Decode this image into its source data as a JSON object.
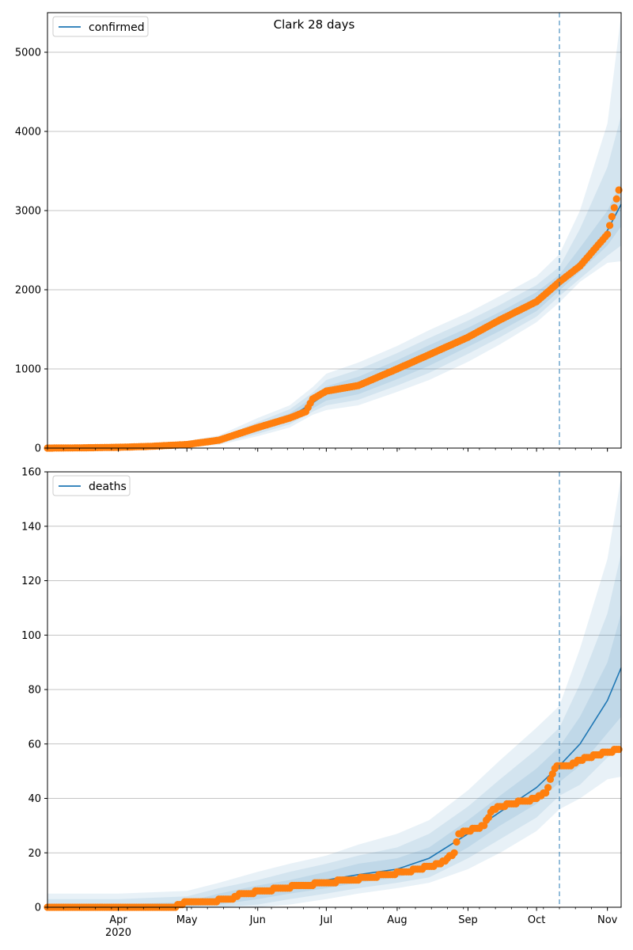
{
  "title": "Clark 28 days",
  "colors": {
    "model_line": "#1f77b4",
    "observed": "#ff7f0e",
    "band": "#1f77b4",
    "grid": "#b0b0b0",
    "vline": "#1f77b4"
  },
  "x_axis": {
    "start": "2020-03-01",
    "end": "2020-11-07",
    "month_ticks": [
      {
        "date": "2020-04-01",
        "label": "Apr",
        "sublabel": "2020"
      },
      {
        "date": "2020-05-01",
        "label": "May",
        "sublabel": ""
      },
      {
        "date": "2020-06-01",
        "label": "Jun",
        "sublabel": ""
      },
      {
        "date": "2020-07-01",
        "label": "Jul",
        "sublabel": ""
      },
      {
        "date": "2020-08-01",
        "label": "Aug",
        "sublabel": ""
      },
      {
        "date": "2020-09-01",
        "label": "Sep",
        "sublabel": ""
      },
      {
        "date": "2020-10-01",
        "label": "Oct",
        "sublabel": ""
      },
      {
        "date": "2020-11-01",
        "label": "Nov",
        "sublabel": ""
      }
    ],
    "forecast_start": "2020-10-11"
  },
  "chart_data": [
    {
      "type": "line",
      "legend": "confirmed",
      "legend_position": "upper-left",
      "ylim": [
        0,
        5500
      ],
      "yticks": [
        {
          "value": 0,
          "label": "0"
        },
        {
          "value": 1000,
          "label": "1000"
        },
        {
          "value": 2000,
          "label": "2000"
        },
        {
          "value": 3000,
          "label": "3000"
        },
        {
          "value": 4000,
          "label": "4000"
        },
        {
          "value": 5000,
          "label": "5000"
        }
      ],
      "grid": "horizontal",
      "model": {
        "x": [
          "2020-03-01",
          "2020-03-15",
          "2020-04-01",
          "2020-04-15",
          "2020-05-01",
          "2020-05-15",
          "2020-06-01",
          "2020-06-15",
          "2020-06-25",
          "2020-07-01",
          "2020-07-15",
          "2020-08-01",
          "2020-08-15",
          "2020-09-01",
          "2020-09-15",
          "2020-10-01",
          "2020-10-11",
          "2020-10-20",
          "2020-11-01",
          "2020-11-07"
        ],
        "y": [
          0,
          2,
          10,
          20,
          40,
          90,
          250,
          390,
          570,
          690,
          790,
          990,
          1170,
          1400,
          1600,
          1850,
          2090,
          2350,
          2750,
          3080
        ],
        "band_inner": {
          "lo": [
            0,
            0,
            5,
            12,
            28,
            70,
            210,
            340,
            500,
            600,
            680,
            870,
            1040,
            1280,
            1480,
            1730,
            1990,
            2230,
            2560,
            2800
          ],
          "hi": [
            2,
            5,
            15,
            30,
            55,
            110,
            290,
            440,
            640,
            780,
            900,
            1110,
            1300,
            1520,
            1720,
            1970,
            2190,
            2530,
            3000,
            3350
          ]
        },
        "band_mid": {
          "lo": [
            0,
            0,
            2,
            6,
            18,
            55,
            180,
            300,
            460,
            540,
            610,
            790,
            950,
            1190,
            1400,
            1660,
            1920,
            2140,
            2430,
            2560
          ],
          "hi": [
            5,
            10,
            20,
            40,
            70,
            130,
            330,
            490,
            700,
            860,
            990,
            1200,
            1390,
            1610,
            1810,
            2060,
            2290,
            2770,
            3550,
            4200
          ]
        },
        "band_outer": {
          "lo": [
            0,
            0,
            0,
            0,
            8,
            40,
            150,
            260,
            420,
            480,
            540,
            710,
            860,
            1090,
            1310,
            1590,
            1840,
            2100,
            2340,
            2360
          ],
          "hi": [
            10,
            20,
            30,
            55,
            90,
            160,
            380,
            540,
            770,
            940,
            1080,
            1290,
            1490,
            1710,
            1920,
            2170,
            2450,
            3000,
            4100,
            5470
          ]
        }
      },
      "observed": {
        "x": [
          "2020-03-01",
          "2020-03-15",
          "2020-04-01",
          "2020-04-15",
          "2020-05-01",
          "2020-05-15",
          "2020-06-01",
          "2020-06-15",
          "2020-06-22",
          "2020-06-25",
          "2020-07-01",
          "2020-07-15",
          "2020-08-01",
          "2020-08-15",
          "2020-09-01",
          "2020-09-15",
          "2020-10-01",
          "2020-10-11",
          "2020-10-20",
          "2020-11-01",
          "2020-11-06"
        ],
        "y": [
          0,
          3,
          10,
          22,
          45,
          100,
          260,
          380,
          460,
          620,
          720,
          790,
          1000,
          1180,
          1400,
          1620,
          1850,
          2100,
          2300,
          2700,
          3260
        ]
      }
    },
    {
      "type": "line",
      "legend": "deaths",
      "legend_position": "upper-left",
      "ylim": [
        0,
        160
      ],
      "yticks": [
        {
          "value": 0,
          "label": "0"
        },
        {
          "value": 20,
          "label": "20"
        },
        {
          "value": 40,
          "label": "40"
        },
        {
          "value": 60,
          "label": "60"
        },
        {
          "value": 80,
          "label": "80"
        },
        {
          "value": 100,
          "label": "100"
        },
        {
          "value": 120,
          "label": "120"
        },
        {
          "value": 140,
          "label": "140"
        },
        {
          "value": 160,
          "label": "160"
        }
      ],
      "grid": "horizontal",
      "model": {
        "x": [
          "2020-03-01",
          "2020-04-01",
          "2020-05-01",
          "2020-05-15",
          "2020-06-01",
          "2020-06-15",
          "2020-07-01",
          "2020-07-15",
          "2020-08-01",
          "2020-08-15",
          "2020-09-01",
          "2020-09-15",
          "2020-10-01",
          "2020-10-11",
          "2020-10-20",
          "2020-11-01",
          "2020-11-07"
        ],
        "y": [
          0,
          0,
          1,
          3,
          5,
          7,
          10,
          12,
          14,
          18,
          27,
          35,
          44,
          52,
          60,
          76,
          88
        ],
        "band_inner": {
          "lo": [
            0,
            0,
            0,
            1,
            3,
            5,
            7,
            9,
            11,
            14,
            22,
            30,
            38,
            46,
            52,
            64,
            70
          ],
          "hi": [
            1,
            1,
            2,
            5,
            8,
            10,
            13,
            16,
            18,
            22,
            32,
            41,
            51,
            59,
            70,
            90,
            108
          ]
        },
        "band_mid": {
          "lo": [
            0,
            0,
            0,
            0,
            1,
            3,
            5,
            7,
            9,
            11,
            18,
            25,
            33,
            41,
            45,
            55,
            58
          ],
          "hi": [
            3,
            3,
            4,
            7,
            10,
            13,
            16,
            19,
            22,
            27,
            37,
            47,
            58,
            66,
            82,
            108,
            130
          ]
        },
        "band_outer": {
          "lo": [
            0,
            0,
            0,
            0,
            0,
            1,
            3,
            5,
            7,
            9,
            14,
            20,
            28,
            36,
            40,
            47,
            48
          ],
          "hi": [
            5,
            5,
            6,
            9,
            13,
            16,
            19,
            23,
            27,
            32,
            43,
            54,
            66,
            74,
            95,
            128,
            158
          ]
        }
      },
      "observed": {
        "x": [
          "2020-03-01",
          "2020-04-25",
          "2020-04-28",
          "2020-05-01",
          "2020-05-09",
          "2020-05-20",
          "2020-05-25",
          "2020-06-05",
          "2020-06-10",
          "2020-07-01",
          "2020-07-20",
          "2020-08-05",
          "2020-08-20",
          "2020-08-26",
          "2020-08-28",
          "2020-09-08",
          "2020-09-12",
          "2020-09-20",
          "2020-10-01",
          "2020-10-05",
          "2020-10-08",
          "2020-10-10",
          "2020-10-16",
          "2020-10-20",
          "2020-11-01",
          "2020-11-06"
        ],
        "y": [
          0,
          0,
          1,
          2,
          2,
          3,
          5,
          6,
          7,
          9,
          11,
          13,
          16,
          20,
          27,
          30,
          36,
          38,
          40,
          42,
          49,
          52,
          52,
          54,
          57,
          58
        ]
      }
    }
  ]
}
